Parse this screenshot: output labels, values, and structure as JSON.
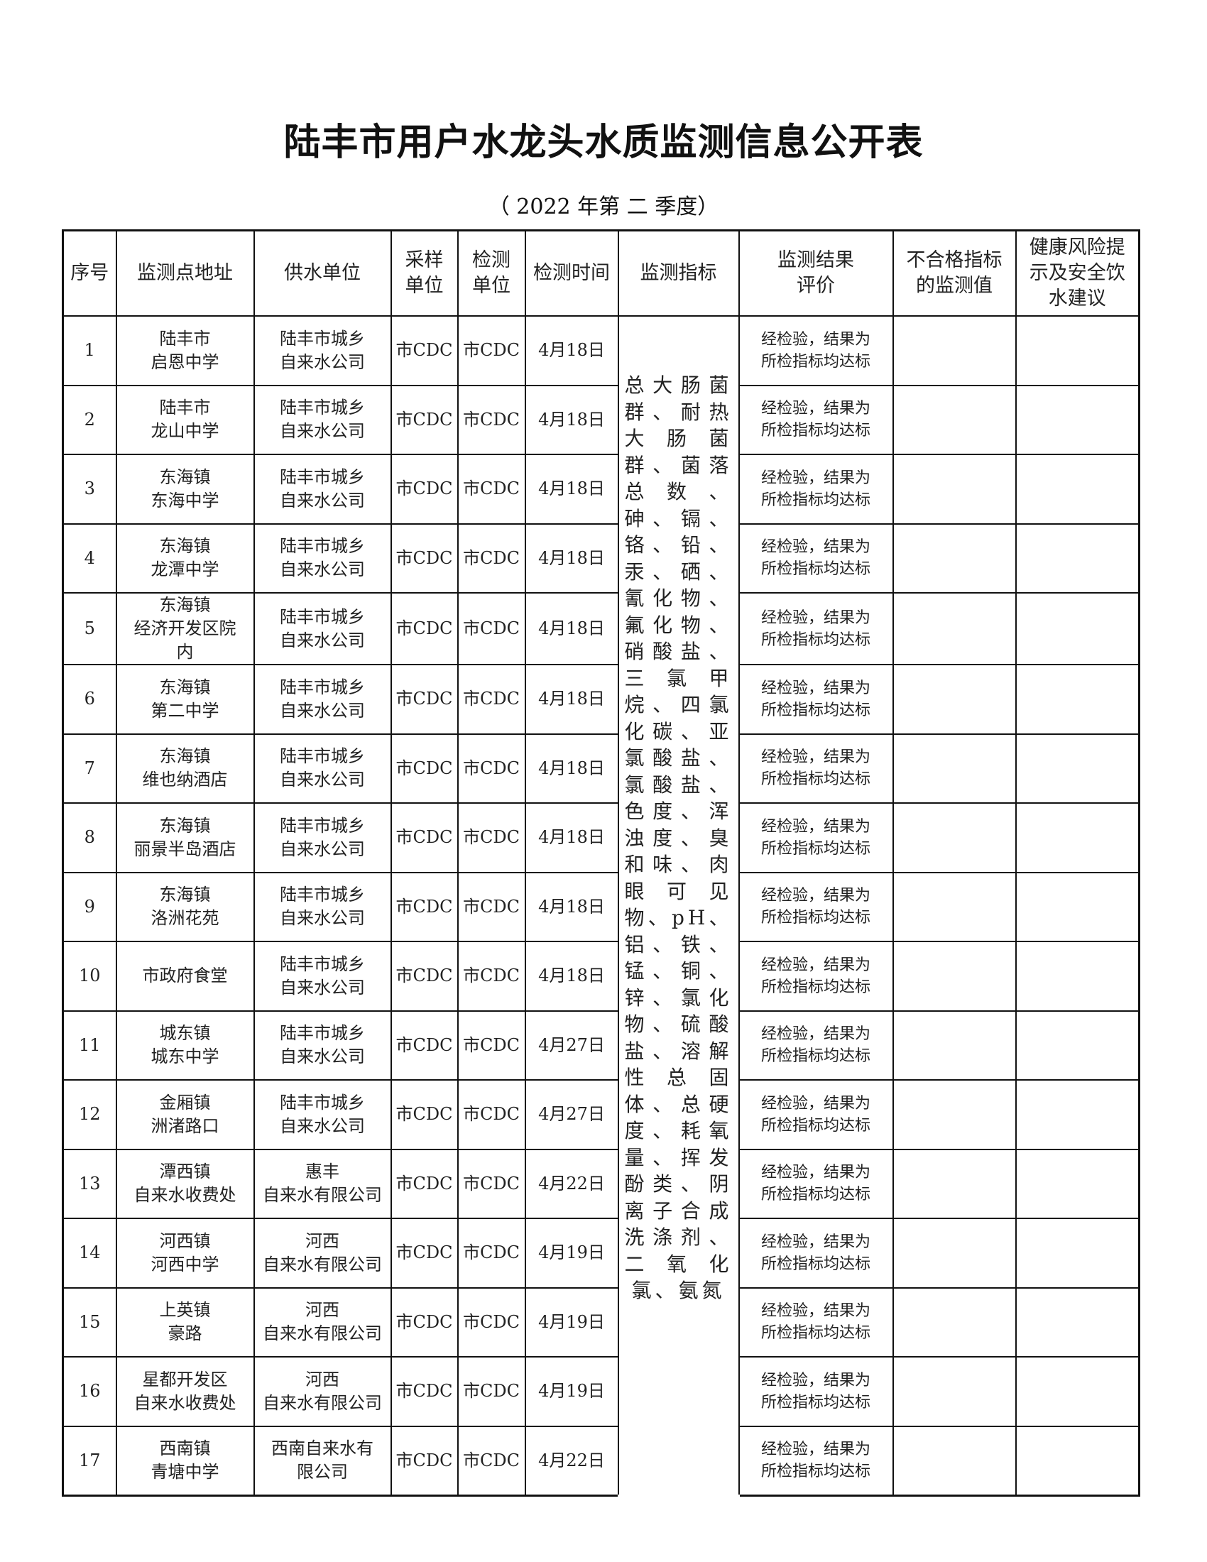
{
  "title": "陆丰市用户水龙头水质监测信息公开表",
  "subtitle": "（ 2022 年第 二 季度）",
  "headers": [
    "序号",
    "监测点地址",
    "供水单位",
    "采样单位",
    "检测单位",
    "检测时间",
    "监测指标",
    "监测结果评价",
    "不合格指标的监测值",
    "健康风险提示及安全饮水建议"
  ],
  "header_lines": {
    "sampling": [
      "采样",
      "单位"
    ],
    "testing": [
      "检测",
      "单位"
    ],
    "result": [
      "监测结果",
      "评价"
    ],
    "failed": [
      "不合格指标",
      "的监测值"
    ],
    "advice": [
      "健康风险提",
      "示及安全饮",
      "水建议"
    ]
  },
  "indicators": "总大肠菌群、耐热大肠菌群、菌落总数、砷、镉、铬、铅、汞、硒、氰化物、氟化物、硝酸盐、三氯甲烷、四氯化碳、亚氯酸盐、氯酸盐、色度、浑浊度、臭和味、肉眼可见物、pH、铝、铁、锰、铜、锌、氯化物、硫酸盐、溶解性总固体、总硬度、耗氧量、挥发酚类、阴离子合成洗涤剂、二氧化氯、氨氮",
  "rows": [
    {
      "no": "1",
      "addr": [
        "陆丰市",
        "启恩中学"
      ],
      "supplier": [
        "陆丰市城乡",
        "自来水公司"
      ],
      "sampler": "市CDC",
      "tester": "市CDC",
      "date": "4月18日",
      "result": [
        "经检验，结果为",
        "所检指标均达标"
      ],
      "failed": "",
      "advice": ""
    },
    {
      "no": "2",
      "addr": [
        "陆丰市",
        "龙山中学"
      ],
      "supplier": [
        "陆丰市城乡",
        "自来水公司"
      ],
      "sampler": "市CDC",
      "tester": "市CDC",
      "date": "4月18日",
      "result": [
        "经检验，结果为",
        "所检指标均达标"
      ],
      "failed": "",
      "advice": ""
    },
    {
      "no": "3",
      "addr": [
        "东海镇",
        "东海中学"
      ],
      "supplier": [
        "陆丰市城乡",
        "自来水公司"
      ],
      "sampler": "市CDC",
      "tester": "市CDC",
      "date": "4月18日",
      "result": [
        "经检验，结果为",
        "所检指标均达标"
      ],
      "failed": "",
      "advice": ""
    },
    {
      "no": "4",
      "addr": [
        "东海镇",
        "龙潭中学"
      ],
      "supplier": [
        "陆丰市城乡",
        "自来水公司"
      ],
      "sampler": "市CDC",
      "tester": "市CDC",
      "date": "4月18日",
      "result": [
        "经检验，结果为",
        "所检指标均达标"
      ],
      "failed": "",
      "advice": ""
    },
    {
      "no": "5",
      "addr": [
        "东海镇",
        "经济开发区院",
        "内"
      ],
      "supplier": [
        "陆丰市城乡",
        "自来水公司"
      ],
      "sampler": "市CDC",
      "tester": "市CDC",
      "date": "4月18日",
      "result": [
        "经检验，结果为",
        "所检指标均达标"
      ],
      "failed": "",
      "advice": ""
    },
    {
      "no": "6",
      "addr": [
        "东海镇",
        "第二中学"
      ],
      "supplier": [
        "陆丰市城乡",
        "自来水公司"
      ],
      "sampler": "市CDC",
      "tester": "市CDC",
      "date": "4月18日",
      "result": [
        "经检验，结果为",
        "所检指标均达标"
      ],
      "failed": "",
      "advice": ""
    },
    {
      "no": "7",
      "addr": [
        "东海镇",
        "维也纳酒店"
      ],
      "supplier": [
        "陆丰市城乡",
        "自来水公司"
      ],
      "sampler": "市CDC",
      "tester": "市CDC",
      "date": "4月18日",
      "result": [
        "经检验，结果为",
        "所检指标均达标"
      ],
      "failed": "",
      "advice": ""
    },
    {
      "no": "8",
      "addr": [
        "东海镇",
        "丽景半岛酒店"
      ],
      "supplier": [
        "陆丰市城乡",
        "自来水公司"
      ],
      "sampler": "市CDC",
      "tester": "市CDC",
      "date": "4月18日",
      "result": [
        "经检验，结果为",
        "所检指标均达标"
      ],
      "failed": "",
      "advice": ""
    },
    {
      "no": "9",
      "addr": [
        "东海镇",
        "洛洲花苑"
      ],
      "supplier": [
        "陆丰市城乡",
        "自来水公司"
      ],
      "sampler": "市CDC",
      "tester": "市CDC",
      "date": "4月18日",
      "result": [
        "经检验，结果为",
        "所检指标均达标"
      ],
      "failed": "",
      "advice": ""
    },
    {
      "no": "10",
      "addr": [
        "市政府食堂"
      ],
      "supplier": [
        "陆丰市城乡",
        "自来水公司"
      ],
      "sampler": "市CDC",
      "tester": "市CDC",
      "date": "4月18日",
      "result": [
        "经检验，结果为",
        "所检指标均达标"
      ],
      "failed": "",
      "advice": ""
    },
    {
      "no": "11",
      "addr": [
        "城东镇",
        "城东中学"
      ],
      "supplier": [
        "陆丰市城乡",
        "自来水公司"
      ],
      "sampler": "市CDC",
      "tester": "市CDC",
      "date": "4月27日",
      "result": [
        "经检验，结果为",
        "所检指标均达标"
      ],
      "failed": "",
      "advice": ""
    },
    {
      "no": "12",
      "addr": [
        "金厢镇",
        "洲渚路口"
      ],
      "supplier": [
        "陆丰市城乡",
        "自来水公司"
      ],
      "sampler": "市CDC",
      "tester": "市CDC",
      "date": "4月27日",
      "result": [
        "经检验，结果为",
        "所检指标均达标"
      ],
      "failed": "",
      "advice": ""
    },
    {
      "no": "13",
      "addr": [
        "潭西镇",
        "自来水收费处"
      ],
      "supplier": [
        "惠丰",
        "自来水有限公司"
      ],
      "sampler": "市CDC",
      "tester": "市CDC",
      "date": "4月22日",
      "result": [
        "经检验，结果为",
        "所检指标均达标"
      ],
      "failed": "",
      "advice": ""
    },
    {
      "no": "14",
      "addr": [
        "河西镇",
        "河西中学"
      ],
      "supplier": [
        "河西",
        "自来水有限公司"
      ],
      "sampler": "市CDC",
      "tester": "市CDC",
      "date": "4月19日",
      "result": [
        "经检验，结果为",
        "所检指标均达标"
      ],
      "failed": "",
      "advice": ""
    },
    {
      "no": "15",
      "addr": [
        "上英镇",
        "豪路"
      ],
      "supplier": [
        "河西",
        "自来水有限公司"
      ],
      "sampler": "市CDC",
      "tester": "市CDC",
      "date": "4月19日",
      "result": [
        "经检验，结果为",
        "所检指标均达标"
      ],
      "failed": "",
      "advice": ""
    },
    {
      "no": "16",
      "addr": [
        "星都开发区",
        "自来水收费处"
      ],
      "supplier": [
        "河西",
        "自来水有限公司"
      ],
      "sampler": "市CDC",
      "tester": "市CDC",
      "date": "4月19日",
      "result": [
        "经检验，结果为",
        "所检指标均达标"
      ],
      "failed": "",
      "advice": ""
    },
    {
      "no": "17",
      "addr": [
        "西南镇",
        "青塘中学"
      ],
      "supplier": [
        "西南自来水有",
        "限公司"
      ],
      "sampler": "市CDC",
      "tester": "市CDC",
      "date": "4月22日",
      "result": [
        "经检验，结果为",
        "所检指标均达标"
      ],
      "failed": "",
      "advice": ""
    }
  ]
}
